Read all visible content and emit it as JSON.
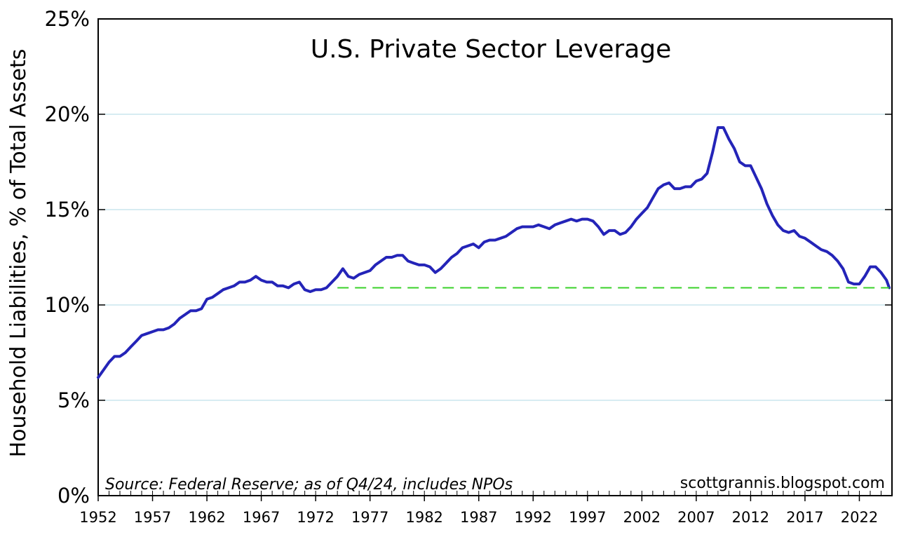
{
  "chart_data": {
    "type": "line",
    "title": "U.S. Private Sector Leverage",
    "xlabel": "",
    "ylabel": "Household Liabilities, % of Total Assets",
    "source_note": "Source: Federal Reserve; as of Q4/24, includes NPOs",
    "credit": "scottgrannis.blogspot.com",
    "xlim": [
      1952,
      2025
    ],
    "ylim": [
      0,
      25
    ],
    "y_ticks": [
      0,
      5,
      10,
      15,
      20,
      25
    ],
    "y_tick_labels": [
      "0%",
      "5%",
      "10%",
      "15%",
      "20%",
      "25%"
    ],
    "x_ticks": [
      1952,
      1957,
      1962,
      1967,
      1972,
      1977,
      1982,
      1987,
      1992,
      1997,
      2002,
      2007,
      2012,
      2017,
      2022
    ],
    "x_tick_labels": [
      "1952",
      "1957",
      "1962",
      "1967",
      "1972",
      "1977",
      "1982",
      "1987",
      "1992",
      "1997",
      "2002",
      "2007",
      "2012",
      "2017",
      "2022"
    ],
    "grid": "horizontal",
    "series": [
      {
        "color": "#2424b8",
        "style": "solid",
        "x": [
          1952.0,
          1952.5,
          1953.0,
          1953.5,
          1954.0,
          1954.5,
          1955.0,
          1955.5,
          1956.0,
          1956.5,
          1957.0,
          1957.5,
          1958.0,
          1958.5,
          1959.0,
          1959.5,
          1960.0,
          1960.5,
          1961.0,
          1961.5,
          1962.0,
          1962.5,
          1963.0,
          1963.5,
          1964.0,
          1964.5,
          1965.0,
          1965.5,
          1966.0,
          1966.5,
          1967.0,
          1967.5,
          1968.0,
          1968.5,
          1969.0,
          1969.5,
          1970.0,
          1970.5,
          1971.0,
          1971.5,
          1972.0,
          1972.5,
          1973.0,
          1973.5,
          1974.0,
          1974.5,
          1975.0,
          1975.5,
          1976.0,
          1976.5,
          1977.0,
          1977.5,
          1978.0,
          1978.5,
          1979.0,
          1979.5,
          1980.0,
          1980.5,
          1981.0,
          1981.5,
          1982.0,
          1982.5,
          1983.0,
          1983.5,
          1984.0,
          1984.5,
          1985.0,
          1985.5,
          1986.0,
          1986.5,
          1987.0,
          1987.5,
          1988.0,
          1988.5,
          1989.0,
          1989.5,
          1990.0,
          1990.5,
          1991.0,
          1991.5,
          1992.0,
          1992.5,
          1993.0,
          1993.5,
          1994.0,
          1994.5,
          1995.0,
          1995.5,
          1996.0,
          1996.5,
          1997.0,
          1997.5,
          1998.0,
          1998.5,
          1999.0,
          1999.5,
          2000.0,
          2000.5,
          2001.0,
          2001.5,
          2002.0,
          2002.5,
          2003.0,
          2003.5,
          2004.0,
          2004.5,
          2005.0,
          2005.5,
          2006.0,
          2006.5,
          2007.0,
          2007.5,
          2008.0,
          2008.5,
          2009.0,
          2009.5,
          2010.0,
          2010.5,
          2011.0,
          2011.5,
          2012.0,
          2012.5,
          2013.0,
          2013.5,
          2014.0,
          2014.5,
          2015.0,
          2015.5,
          2016.0,
          2016.5,
          2017.0,
          2017.5,
          2018.0,
          2018.5,
          2019.0,
          2019.5,
          2020.0,
          2020.5,
          2021.0,
          2021.5,
          2022.0,
          2022.5,
          2023.0,
          2023.5,
          2024.0,
          2024.5,
          2024.75
        ],
        "y": [
          6.2,
          6.6,
          7.0,
          7.3,
          7.3,
          7.5,
          7.8,
          8.1,
          8.4,
          8.5,
          8.6,
          8.7,
          8.7,
          8.8,
          9.0,
          9.3,
          9.5,
          9.7,
          9.7,
          9.8,
          10.3,
          10.4,
          10.6,
          10.8,
          10.9,
          11.0,
          11.2,
          11.2,
          11.3,
          11.5,
          11.3,
          11.2,
          11.2,
          11.0,
          11.0,
          10.9,
          11.1,
          11.2,
          10.8,
          10.7,
          10.8,
          10.8,
          10.9,
          11.2,
          11.5,
          11.9,
          11.5,
          11.4,
          11.6,
          11.7,
          11.8,
          12.1,
          12.3,
          12.5,
          12.5,
          12.6,
          12.6,
          12.3,
          12.2,
          12.1,
          12.1,
          12.0,
          11.7,
          11.9,
          12.2,
          12.5,
          12.7,
          13.0,
          13.1,
          13.2,
          13.0,
          13.3,
          13.4,
          13.4,
          13.5,
          13.6,
          13.8,
          14.0,
          14.1,
          14.1,
          14.1,
          14.2,
          14.1,
          14.0,
          14.2,
          14.3,
          14.4,
          14.5,
          14.4,
          14.5,
          14.5,
          14.4,
          14.1,
          13.7,
          13.9,
          13.9,
          13.7,
          13.8,
          14.1,
          14.5,
          14.8,
          15.1,
          15.6,
          16.1,
          16.3,
          16.4,
          16.1,
          16.1,
          16.2,
          16.2,
          16.5,
          16.6,
          16.9,
          18.0,
          19.3,
          19.3,
          18.7,
          18.2,
          17.5,
          17.3,
          17.3,
          16.7,
          16.1,
          15.3,
          14.7,
          14.2,
          13.9,
          13.8,
          13.9,
          13.6,
          13.5,
          13.3,
          13.1,
          12.9,
          12.8,
          12.6,
          12.3,
          11.9,
          11.2,
          11.1,
          11.1,
          11.5,
          12.0,
          12.0,
          11.7,
          11.3,
          10.9
        ]
      },
      {
        "color": "#39d129",
        "style": "dashed",
        "x": [
          1974.0,
          2024.75
        ],
        "y": [
          10.9,
          10.9
        ]
      }
    ]
  }
}
